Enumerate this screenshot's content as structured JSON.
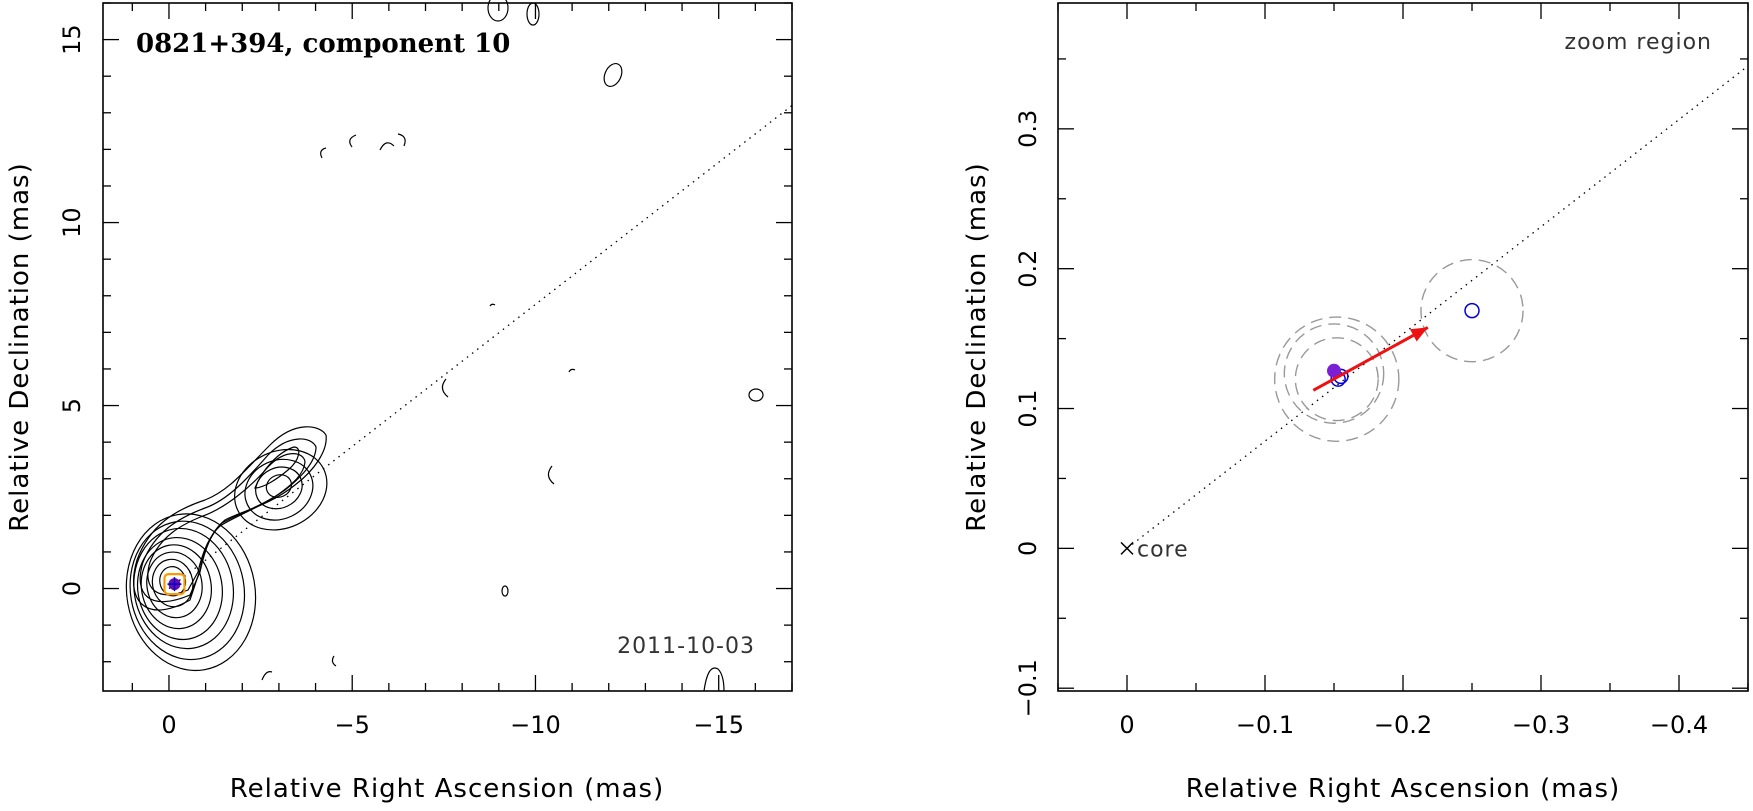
{
  "chart_data": [
    {
      "type": "scatter",
      "title": "0821+394, component 10",
      "date": "2011-10-03",
      "xlabel": "Relative Right Ascension (mas)",
      "ylabel": "Relative Declination (mas)",
      "xlim": [
        1.8,
        -17.0
      ],
      "ylim": [
        -2.8,
        16.0
      ],
      "xticks": [
        0,
        -5,
        -10,
        -15
      ],
      "xtick_labels": [
        "0",
        "−5",
        "−10",
        "−15"
      ],
      "yticks": [
        0,
        5,
        10,
        15
      ],
      "ytick_labels": [
        "0",
        "5",
        "10",
        "15"
      ],
      "colors": {
        "frame": "#000000",
        "contour": "#000000",
        "component": "#6a0dad",
        "highlight": "#ff9900",
        "cross": "#0000cc"
      },
      "component_position": {
        "x": -0.15,
        "y": 0.12
      },
      "jet_direction_line": {
        "from": [
          0,
          0
        ],
        "to": [
          -17,
          13.2
        ]
      },
      "contours_core": [
        {
          "cx": -0.1,
          "cy": 0.2,
          "rx": 0.35,
          "ry": 0.4
        },
        {
          "cx": -0.1,
          "cy": 0.15,
          "rx": 0.55,
          "ry": 0.65
        },
        {
          "cx": -0.15,
          "cy": 0.1,
          "rx": 0.75,
          "ry": 0.9
        },
        {
          "cx": -0.2,
          "cy": 0.05,
          "rx": 0.95,
          "ry": 1.15
        },
        {
          "cx": -0.3,
          "cy": 0.0,
          "rx": 1.15,
          "ry": 1.4
        },
        {
          "cx": -0.4,
          "cy": 0.0,
          "rx": 1.35,
          "ry": 1.65
        },
        {
          "cx": -0.5,
          "cy": -0.05,
          "rx": 1.55,
          "ry": 1.9
        },
        {
          "cx": -0.6,
          "cy": -0.1,
          "rx": 1.75,
          "ry": 2.15
        }
      ],
      "contours_knot": [
        {
          "cx": -3.0,
          "cy": 2.8,
          "rx": 0.35,
          "ry": 0.3
        },
        {
          "cx": -3.0,
          "cy": 2.75,
          "rx": 0.65,
          "ry": 0.55
        },
        {
          "cx": -3.0,
          "cy": 2.7,
          "rx": 0.95,
          "ry": 0.8
        },
        {
          "cx": -3.05,
          "cy": 2.7,
          "rx": 1.3,
          "ry": 1.05
        }
      ]
    },
    {
      "type": "scatter",
      "title": "zoom region",
      "xlabel": "Relative Right Ascension (mas)",
      "ylabel": "Relative Declination (mas)",
      "xlim": [
        0.05,
        -0.45
      ],
      "ylim": [
        -0.102,
        0.39
      ],
      "xticks": [
        0,
        -0.1,
        -0.2,
        -0.3,
        -0.4
      ],
      "xtick_labels": [
        "0",
        "−0.1",
        "−0.2",
        "−0.3",
        "−0.4"
      ],
      "yticks": [
        -0.1,
        0,
        0.1,
        0.2,
        0.3
      ],
      "ytick_labels": [
        "−0.1",
        "0",
        "0.1",
        "0.2",
        "0.3"
      ],
      "core_label": "core",
      "colors": {
        "points": "#0000dd",
        "filled_point": "#7a1fd6",
        "arrow": "#ee1111",
        "error_circles": "#999999",
        "line": "#000000"
      },
      "points_open": [
        {
          "x": -0.155,
          "y": 0.123
        },
        {
          "x": -0.153,
          "y": 0.121
        },
        {
          "x": -0.25,
          "y": 0.17
        }
      ],
      "point_filled": {
        "x": -0.15,
        "y": 0.127
      },
      "error_circles": [
        {
          "x": -0.152,
          "y": 0.121,
          "r": 0.045
        },
        {
          "x": -0.152,
          "y": 0.121,
          "r": 0.03
        },
        {
          "x": -0.15,
          "y": 0.125,
          "r": 0.036
        },
        {
          "x": -0.25,
          "y": 0.17,
          "r": 0.037
        }
      ],
      "arrow": {
        "from": [
          -0.135,
          0.113
        ],
        "to": [
          -0.218,
          0.158
        ]
      },
      "jet_direction_line": {
        "from": [
          0,
          0
        ],
        "to": [
          -0.45,
          0.345
        ]
      }
    }
  ]
}
